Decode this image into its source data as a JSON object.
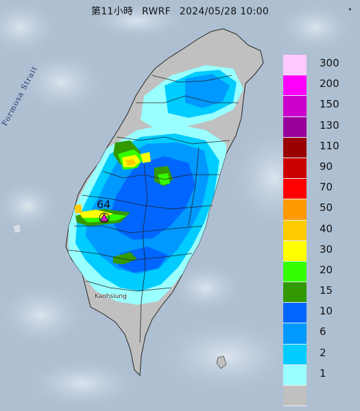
{
  "header": {
    "period": "第11小時",
    "model": "RWRF",
    "datetime": "2024/05/28 10:00"
  },
  "map": {
    "region": "Taiwan",
    "sea_label": "Formosa Strait",
    "city_label": "Kaohsiung",
    "max_value_label": "64",
    "max_marker_color": "#d21ec8"
  },
  "legend": {
    "items": [
      {
        "label": "300",
        "color": "#ffc8ff"
      },
      {
        "label": "200",
        "color": "#ff00ff"
      },
      {
        "label": "150",
        "color": "#cc00cc"
      },
      {
        "label": "130",
        "color": "#990099"
      },
      {
        "label": "110",
        "color": "#990000"
      },
      {
        "label": "90",
        "color": "#cc0000"
      },
      {
        "label": "70",
        "color": "#ff0000"
      },
      {
        "label": "50",
        "color": "#ff9900"
      },
      {
        "label": "40",
        "color": "#ffcc00"
      },
      {
        "label": "30",
        "color": "#ffff00"
      },
      {
        "label": "20",
        "color": "#33ff00"
      },
      {
        "label": "15",
        "color": "#339900"
      },
      {
        "label": "10",
        "color": "#0066ff"
      },
      {
        "label": "6",
        "color": "#0099ff"
      },
      {
        "label": "2",
        "color": "#00ccff"
      },
      {
        "label": "1",
        "color": "#99ffff"
      },
      {
        "label": "",
        "color": "#c0c0c0"
      }
    ]
  },
  "colors": {
    "sea": "#aebfd2",
    "land_dry": "#c0c0c0",
    "rain_1": "#99ffff",
    "rain_2": "#00ccff",
    "rain_6": "#0099ff",
    "rain_10": "#0066ff",
    "rain_15": "#339900",
    "rain_20": "#33ff00",
    "rain_30": "#ffff00",
    "rain_40": "#ffcc00"
  }
}
